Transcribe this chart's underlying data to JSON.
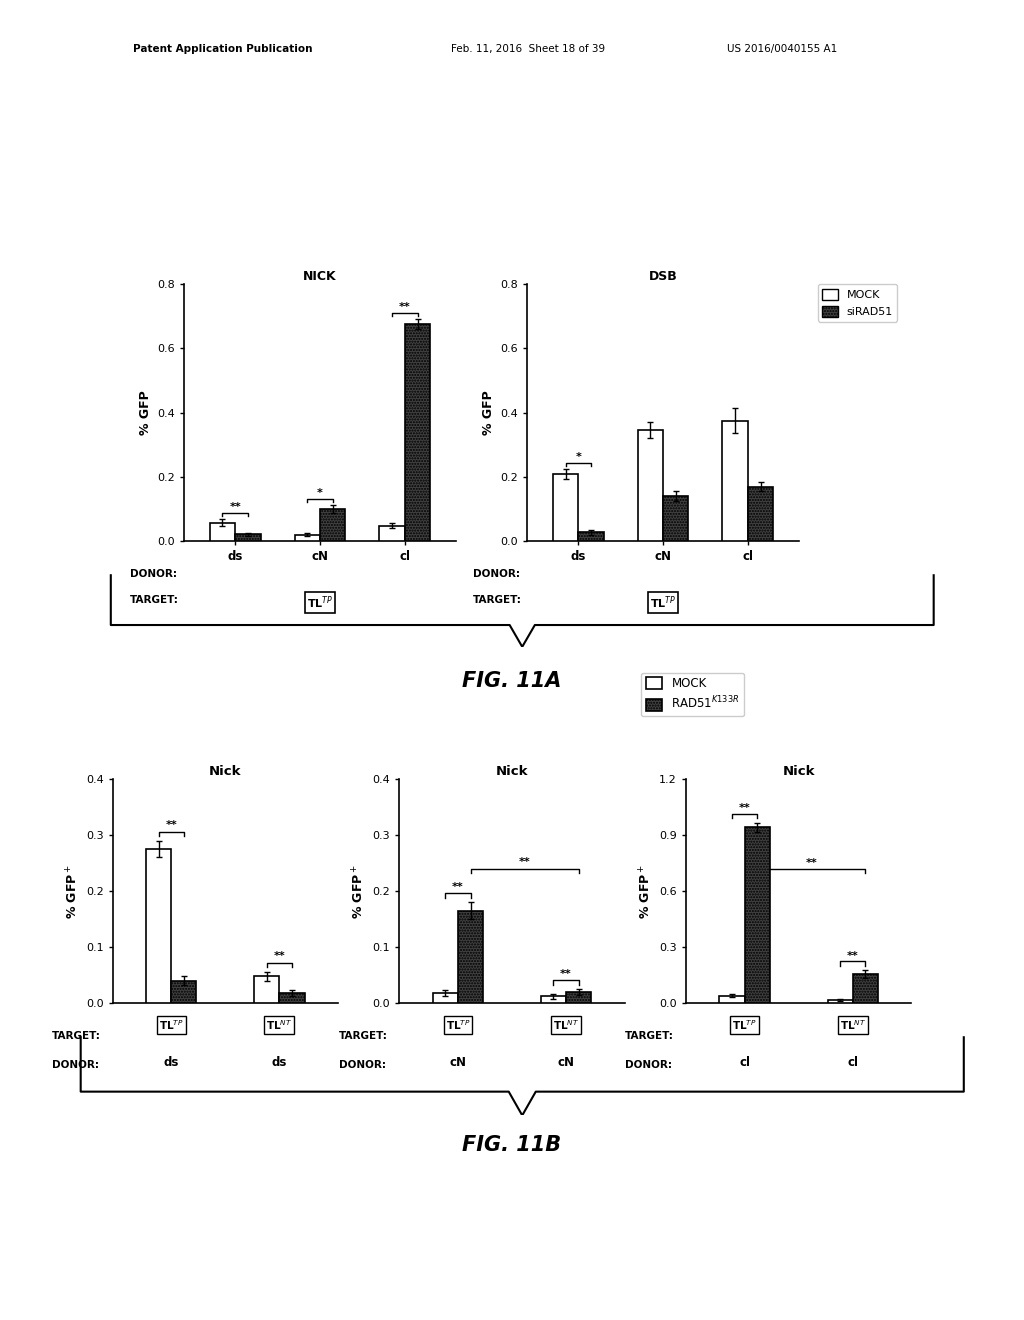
{
  "fig_width": 10.24,
  "fig_height": 13.2,
  "background_color": "#ffffff",
  "header_left": "Patent Application Publication",
  "header_mid": "Feb. 11, 2016  Sheet 18 of 39",
  "header_right": "US 2016/0040155 A1",
  "fig11a": {
    "title_nick": "NICK",
    "title_dsb": "DSB",
    "ylabel": "% GFP",
    "ylim": [
      0,
      0.8
    ],
    "yticks": [
      0.0,
      0.2,
      0.4,
      0.6,
      0.8
    ],
    "nick_bars": {
      "ds": {
        "mock": 0.058,
        "sirad51": 0.022
      },
      "cN": {
        "mock": 0.02,
        "sirad51": 0.1
      },
      "cl": {
        "mock": 0.048,
        "sirad51": 0.675
      }
    },
    "nick_errors": {
      "ds": {
        "mock": 0.01,
        "sirad51": 0.005
      },
      "cN": {
        "mock": 0.005,
        "sirad51": 0.012
      },
      "cl": {
        "mock": 0.008,
        "sirad51": 0.015
      }
    },
    "nick_sig": {
      "ds": "**",
      "cN": "*",
      "cl": "**"
    },
    "dsb_bars": {
      "ds": {
        "mock": 0.208,
        "sirad51": 0.028
      },
      "cN": {
        "mock": 0.345,
        "sirad51": 0.14
      },
      "cl": {
        "mock": 0.375,
        "sirad51": 0.17
      }
    },
    "dsb_errors": {
      "ds": {
        "mock": 0.015,
        "sirad51": 0.008
      },
      "cN": {
        "mock": 0.025,
        "sirad51": 0.015
      },
      "cl": {
        "mock": 0.04,
        "sirad51": 0.015
      }
    },
    "dsb_sig": {
      "ds": "*",
      "cN": null,
      "cl": null
    },
    "legend_mock": "MOCK",
    "legend_sirad51": "siRAD51",
    "donor_labels": [
      "ds",
      "cN",
      "cl"
    ],
    "target_label": "TL$^{TP}$",
    "fig_label": "FIG. 11A"
  },
  "fig11b": {
    "legend_mock": "MOCK",
    "legend_rad51": "RAD51$^{K133R}$",
    "panel1": {
      "title": "Nick",
      "ylim": [
        0,
        0.4
      ],
      "yticks": [
        0.0,
        0.1,
        0.2,
        0.3,
        0.4
      ],
      "bars": {
        "TLTP": {
          "mock": 0.275,
          "rad51": 0.04
        },
        "TLNT": {
          "mock": 0.048,
          "rad51": 0.018
        }
      },
      "errors": {
        "TLTP": {
          "mock": 0.015,
          "rad51": 0.008
        },
        "TLNT": {
          "mock": 0.008,
          "rad51": 0.005
        }
      },
      "sig_TLTP": "**",
      "sig_TLNT": "**",
      "sig_cross": null,
      "donor_TLTP": "ds",
      "donor_TLNT": "ds"
    },
    "panel2": {
      "title": "Nick",
      "ylim": [
        0,
        0.4
      ],
      "yticks": [
        0.0,
        0.1,
        0.2,
        0.3,
        0.4
      ],
      "bars": {
        "TLTP": {
          "mock": 0.018,
          "rad51": 0.165
        },
        "TLNT": {
          "mock": 0.012,
          "rad51": 0.02
        }
      },
      "errors": {
        "TLTP": {
          "mock": 0.005,
          "rad51": 0.015
        },
        "TLNT": {
          "mock": 0.005,
          "rad51": 0.005
        }
      },
      "sig_TLTP": "**",
      "sig_TLNT": "**",
      "sig_cross": "**",
      "donor_TLTP": "cN",
      "donor_TLNT": "cN"
    },
    "panel3": {
      "title": "Nick",
      "ylim": [
        0,
        1.2
      ],
      "yticks": [
        0.0,
        0.3,
        0.6,
        0.9,
        1.2
      ],
      "bars": {
        "TLTP": {
          "mock": 0.04,
          "rad51": 0.94
        },
        "TLNT": {
          "mock": 0.015,
          "rad51": 0.155
        }
      },
      "errors": {
        "TLTP": {
          "mock": 0.008,
          "rad51": 0.025
        },
        "TLNT": {
          "mock": 0.005,
          "rad51": 0.02
        }
      },
      "sig_TLTP": "**",
      "sig_TLNT": "**",
      "sig_cross": "**",
      "donor_TLTP": "cl",
      "donor_TLNT": "cl"
    },
    "fig_label": "FIG. 11B"
  }
}
